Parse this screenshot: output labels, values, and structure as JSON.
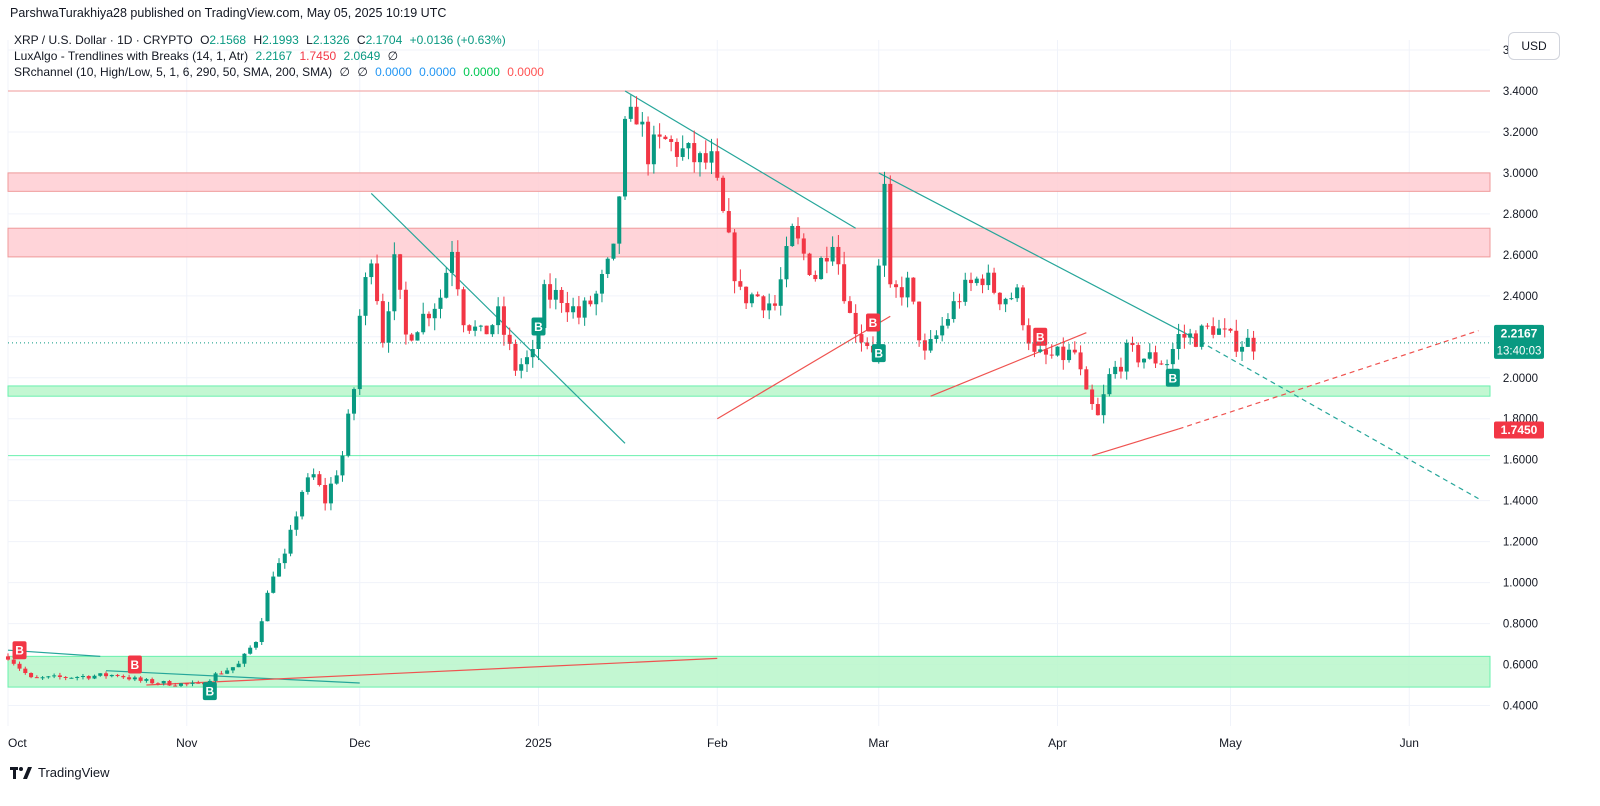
{
  "header": {
    "published_line": "ParshwaTurakhiya28 published on TradingView.com, May 05, 2025 10:19 UTC"
  },
  "legend": {
    "symbol": "XRP / U.S. Dollar · 1D · CRYPTO",
    "ohlc": {
      "open_label": "O",
      "open": "2.1568",
      "high_label": "H",
      "high": "2.1993",
      "low_label": "L",
      "low": "2.1326",
      "close_label": "C",
      "close": "2.1704",
      "change": "+0.0136 (+0.63%)"
    },
    "indicator1": {
      "name": "LuxAlgo - Trendlines with Breaks (14, 1, Atr)",
      "v1": "2.2167",
      "v2": "1.7450",
      "v3": "2.0649",
      "v4": "∅"
    },
    "indicator2": {
      "name": "SRchannel (10, High/Low, 5, 1, 6, 290, 50, SMA, 200, SMA)",
      "v1": "∅",
      "v2": "∅",
      "v3": "0.0000",
      "v4": "0.0000",
      "v5": "0.0000",
      "v6": "0.0000"
    }
  },
  "currency_button": "USD",
  "footer": {
    "brand": "TradingView"
  },
  "colors": {
    "up": "#089981",
    "down": "#f23645",
    "resistance_zone": "#ffcdd2",
    "support_zone": "#b9f6ca",
    "trend_down": "#26a69a",
    "trend_up": "#ef5350",
    "grid": "#f0f3fa"
  },
  "chart_data": {
    "type": "candlestick",
    "ylim": [
      0.3,
      3.6
    ],
    "y_ticks": [
      "0.4000",
      "0.6000",
      "0.8000",
      "1.0000",
      "1.2000",
      "1.4000",
      "1.6000",
      "1.8000",
      "2.0000",
      "2.2000",
      "2.4000",
      "2.6000",
      "2.8000",
      "3.0000",
      "3.2000",
      "3.4000",
      "3.6000"
    ],
    "x_range": [
      "2024-10-01",
      "2025-06-15"
    ],
    "x_ticks": [
      {
        "date": "2024-10-01",
        "label": "Oct"
      },
      {
        "date": "2024-11-01",
        "label": "Nov"
      },
      {
        "date": "2024-12-01",
        "label": "Dec"
      },
      {
        "date": "2025-01-01",
        "label": "2025"
      },
      {
        "date": "2025-02-01",
        "label": "Feb"
      },
      {
        "date": "2025-03-01",
        "label": "Mar"
      },
      {
        "date": "2025-04-01",
        "label": "Apr"
      },
      {
        "date": "2025-05-01",
        "label": "May"
      },
      {
        "date": "2025-06-01",
        "label": "Jun"
      }
    ],
    "price_labels": [
      {
        "value": 2.2167,
        "text": "2.2167",
        "sub": "13:40:03",
        "color": "#089981"
      },
      {
        "value": 1.745,
        "text": "1.7450",
        "sub": "",
        "color": "#f23645"
      }
    ],
    "zones": [
      {
        "y1": 3.4,
        "y2": 3.4,
        "kind": "resistance-line"
      },
      {
        "y1": 2.91,
        "y2": 3.0,
        "kind": "resistance"
      },
      {
        "y1": 2.59,
        "y2": 2.73,
        "kind": "resistance"
      },
      {
        "y1": 1.91,
        "y2": 1.96,
        "kind": "support"
      },
      {
        "y1": 1.62,
        "y2": 1.62,
        "kind": "support-line"
      },
      {
        "y1": 0.49,
        "y2": 0.64,
        "kind": "support"
      }
    ],
    "anchors": [
      [
        "2024-10-01",
        0.64
      ],
      [
        "2024-10-05",
        0.53
      ],
      [
        "2024-10-12",
        0.54
      ],
      [
        "2024-10-20",
        0.55
      ],
      [
        "2024-10-24",
        0.52
      ],
      [
        "2024-10-28",
        0.51
      ],
      [
        "2024-11-03",
        0.5
      ],
      [
        "2024-11-06",
        0.55
      ],
      [
        "2024-11-10",
        0.6
      ],
      [
        "2024-11-13",
        0.72
      ],
      [
        "2024-11-16",
        1.05
      ],
      [
        "2024-11-18",
        1.12
      ],
      [
        "2024-11-21",
        1.45
      ],
      [
        "2024-11-23",
        1.52
      ],
      [
        "2024-11-25",
        1.4
      ],
      [
        "2024-11-28",
        1.62
      ],
      [
        "2024-11-30",
        1.95
      ],
      [
        "2024-12-01",
        2.3
      ],
      [
        "2024-12-03",
        2.62
      ],
      [
        "2024-12-05",
        2.2
      ],
      [
        "2024-12-07",
        2.55
      ],
      [
        "2024-12-09",
        2.2
      ],
      [
        "2024-12-12",
        2.3
      ],
      [
        "2024-12-15",
        2.4
      ],
      [
        "2024-12-17",
        2.65
      ],
      [
        "2024-12-19",
        2.3
      ],
      [
        "2024-12-22",
        2.2
      ],
      [
        "2024-12-25",
        2.3
      ],
      [
        "2024-12-28",
        2.05
      ],
      [
        "2024-12-31",
        2.1
      ],
      [
        "2025-01-02",
        2.4
      ],
      [
        "2025-01-05",
        2.4
      ],
      [
        "2025-01-08",
        2.3
      ],
      [
        "2025-01-11",
        2.4
      ],
      [
        "2025-01-14",
        2.6
      ],
      [
        "2025-01-16",
        3.2
      ],
      [
        "2025-01-18",
        3.3
      ],
      [
        "2025-01-20",
        3.1
      ],
      [
        "2025-01-23",
        3.15
      ],
      [
        "2025-01-26",
        3.1
      ],
      [
        "2025-01-29",
        3.05
      ],
      [
        "2025-01-31",
        3.05
      ],
      [
        "2025-02-03",
        2.65
      ],
      [
        "2025-02-05",
        2.4
      ],
      [
        "2025-02-08",
        2.4
      ],
      [
        "2025-02-11",
        2.35
      ],
      [
        "2025-02-14",
        2.7
      ],
      [
        "2025-02-18",
        2.5
      ],
      [
        "2025-02-21",
        2.7
      ],
      [
        "2025-02-24",
        2.3
      ],
      [
        "2025-02-26",
        2.2
      ],
      [
        "2025-02-28",
        2.15
      ],
      [
        "2025-03-02",
        2.9
      ],
      [
        "2025-03-03",
        2.4
      ],
      [
        "2025-03-06",
        2.45
      ],
      [
        "2025-03-09",
        2.1
      ],
      [
        "2025-03-12",
        2.25
      ],
      [
        "2025-03-15",
        2.4
      ],
      [
        "2025-03-19",
        2.5
      ],
      [
        "2025-03-22",
        2.4
      ],
      [
        "2025-03-25",
        2.4
      ],
      [
        "2025-03-28",
        2.1
      ],
      [
        "2025-04-01",
        2.1
      ],
      [
        "2025-04-04",
        2.12
      ],
      [
        "2025-04-06",
        1.9
      ],
      [
        "2025-04-08",
        1.8
      ],
      [
        "2025-04-10",
        2.0
      ],
      [
        "2025-04-13",
        2.12
      ],
      [
        "2025-04-16",
        2.1
      ],
      [
        "2025-04-20",
        2.08
      ],
      [
        "2025-04-22",
        2.2
      ],
      [
        "2025-04-25",
        2.2
      ],
      [
        "2025-04-28",
        2.25
      ],
      [
        "2025-05-01",
        2.18
      ],
      [
        "2025-05-05",
        2.17
      ]
    ],
    "trendlines": [
      {
        "from": [
          "2024-12-03",
          2.9
        ],
        "to": [
          "2025-01-16",
          1.68
        ],
        "kind": "down"
      },
      {
        "from": [
          "2025-01-16",
          3.4
        ],
        "to": [
          "2025-02-25",
          2.73
        ],
        "kind": "down"
      },
      {
        "from": [
          "2025-03-01",
          3.0
        ],
        "to": [
          "2025-04-23",
          2.22
        ],
        "kind": "down"
      },
      {
        "from": [
          "2025-04-23",
          2.22
        ],
        "to": [
          "2025-06-13",
          1.41
        ],
        "kind": "down-dashed"
      },
      {
        "from": [
          "2025-02-01",
          1.8
        ],
        "to": [
          "2025-03-03",
          2.3
        ],
        "kind": "up"
      },
      {
        "from": [
          "2025-03-10",
          1.91
        ],
        "to": [
          "2025-04-06",
          2.22
        ],
        "kind": "up"
      },
      {
        "from": [
          "2025-04-07",
          1.62
        ],
        "to": [
          "2025-04-22",
          1.75
        ],
        "kind": "up"
      },
      {
        "from": [
          "2025-04-22",
          1.75
        ],
        "to": [
          "2025-06-13",
          2.23
        ],
        "kind": "up-dashed"
      },
      {
        "from": [
          "2024-10-01",
          0.67
        ],
        "to": [
          "2024-10-17",
          0.64
        ],
        "kind": "down"
      },
      {
        "from": [
          "2024-10-18",
          0.57
        ],
        "to": [
          "2024-12-01",
          0.51
        ],
        "kind": "down"
      },
      {
        "from": [
          "2024-10-25",
          0.5
        ],
        "to": [
          "2025-02-01",
          0.63
        ],
        "kind": "up"
      }
    ],
    "signals": [
      {
        "date": "2024-10-03",
        "price": 0.67,
        "type": "B",
        "dir": "sell"
      },
      {
        "date": "2024-10-23",
        "price": 0.6,
        "type": "B",
        "dir": "sell"
      },
      {
        "date": "2024-11-05",
        "price": 0.47,
        "type": "B",
        "dir": "buy"
      },
      {
        "date": "2025-01-01",
        "price": 2.25,
        "type": "B",
        "dir": "buy"
      },
      {
        "date": "2025-02-28",
        "price": 2.27,
        "type": "B",
        "dir": "sell"
      },
      {
        "date": "2025-03-01",
        "price": 2.12,
        "type": "B",
        "dir": "buy"
      },
      {
        "date": "2025-03-29",
        "price": 2.2,
        "type": "B",
        "dir": "sell"
      },
      {
        "date": "2025-04-21",
        "price": 2.0,
        "type": "B",
        "dir": "buy"
      }
    ],
    "last_price": 2.17
  }
}
